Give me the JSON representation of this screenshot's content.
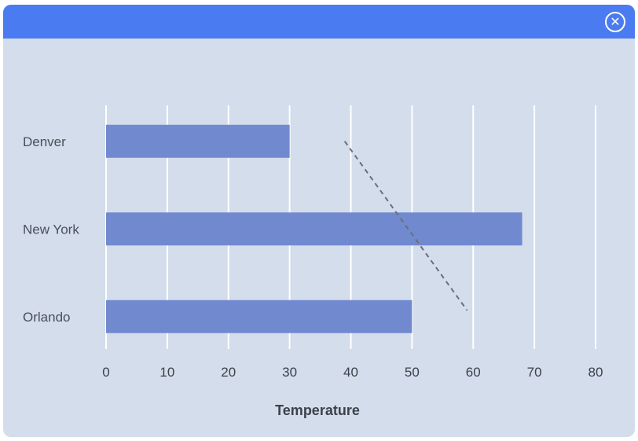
{
  "window": {
    "close_icon_glyph": "✕",
    "titlebar_color": "#4a7bf0",
    "background_color": "#d3ddeb"
  },
  "chart_data": {
    "type": "bar",
    "orientation": "horizontal",
    "categories": [
      "Denver",
      "New York",
      "Orlando"
    ],
    "values": [
      30,
      68,
      50
    ],
    "xlabel": "Temperature",
    "xlim": [
      0,
      80
    ],
    "xticks": [
      0,
      10,
      20,
      30,
      40,
      50,
      60,
      70,
      80
    ],
    "grid": true,
    "bar_color": "#7189cf",
    "trendline": {
      "style": "dashed",
      "x": [
        39,
        59
      ],
      "category_from": "Denver",
      "category_to": "Orlando"
    }
  }
}
